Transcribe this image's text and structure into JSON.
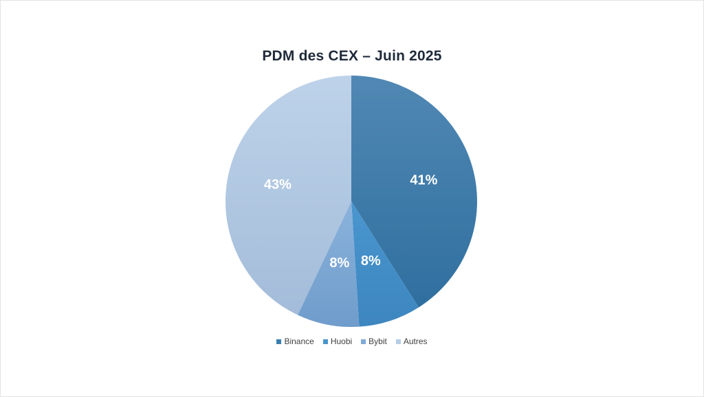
{
  "chart_data": {
    "type": "pie",
    "title": "PDM des CEX – Juin 2025",
    "categories": [
      "Binance",
      "Huobi",
      "Bybit",
      "Autres"
    ],
    "values": [
      41,
      8,
      8,
      43
    ],
    "labels": [
      "41%",
      "8%",
      "8%",
      "43%"
    ],
    "colors": [
      "#3a7fb0",
      "#4a94cc",
      "#7fa9d6",
      "#b6cde6"
    ],
    "legend_position": "bottom"
  }
}
